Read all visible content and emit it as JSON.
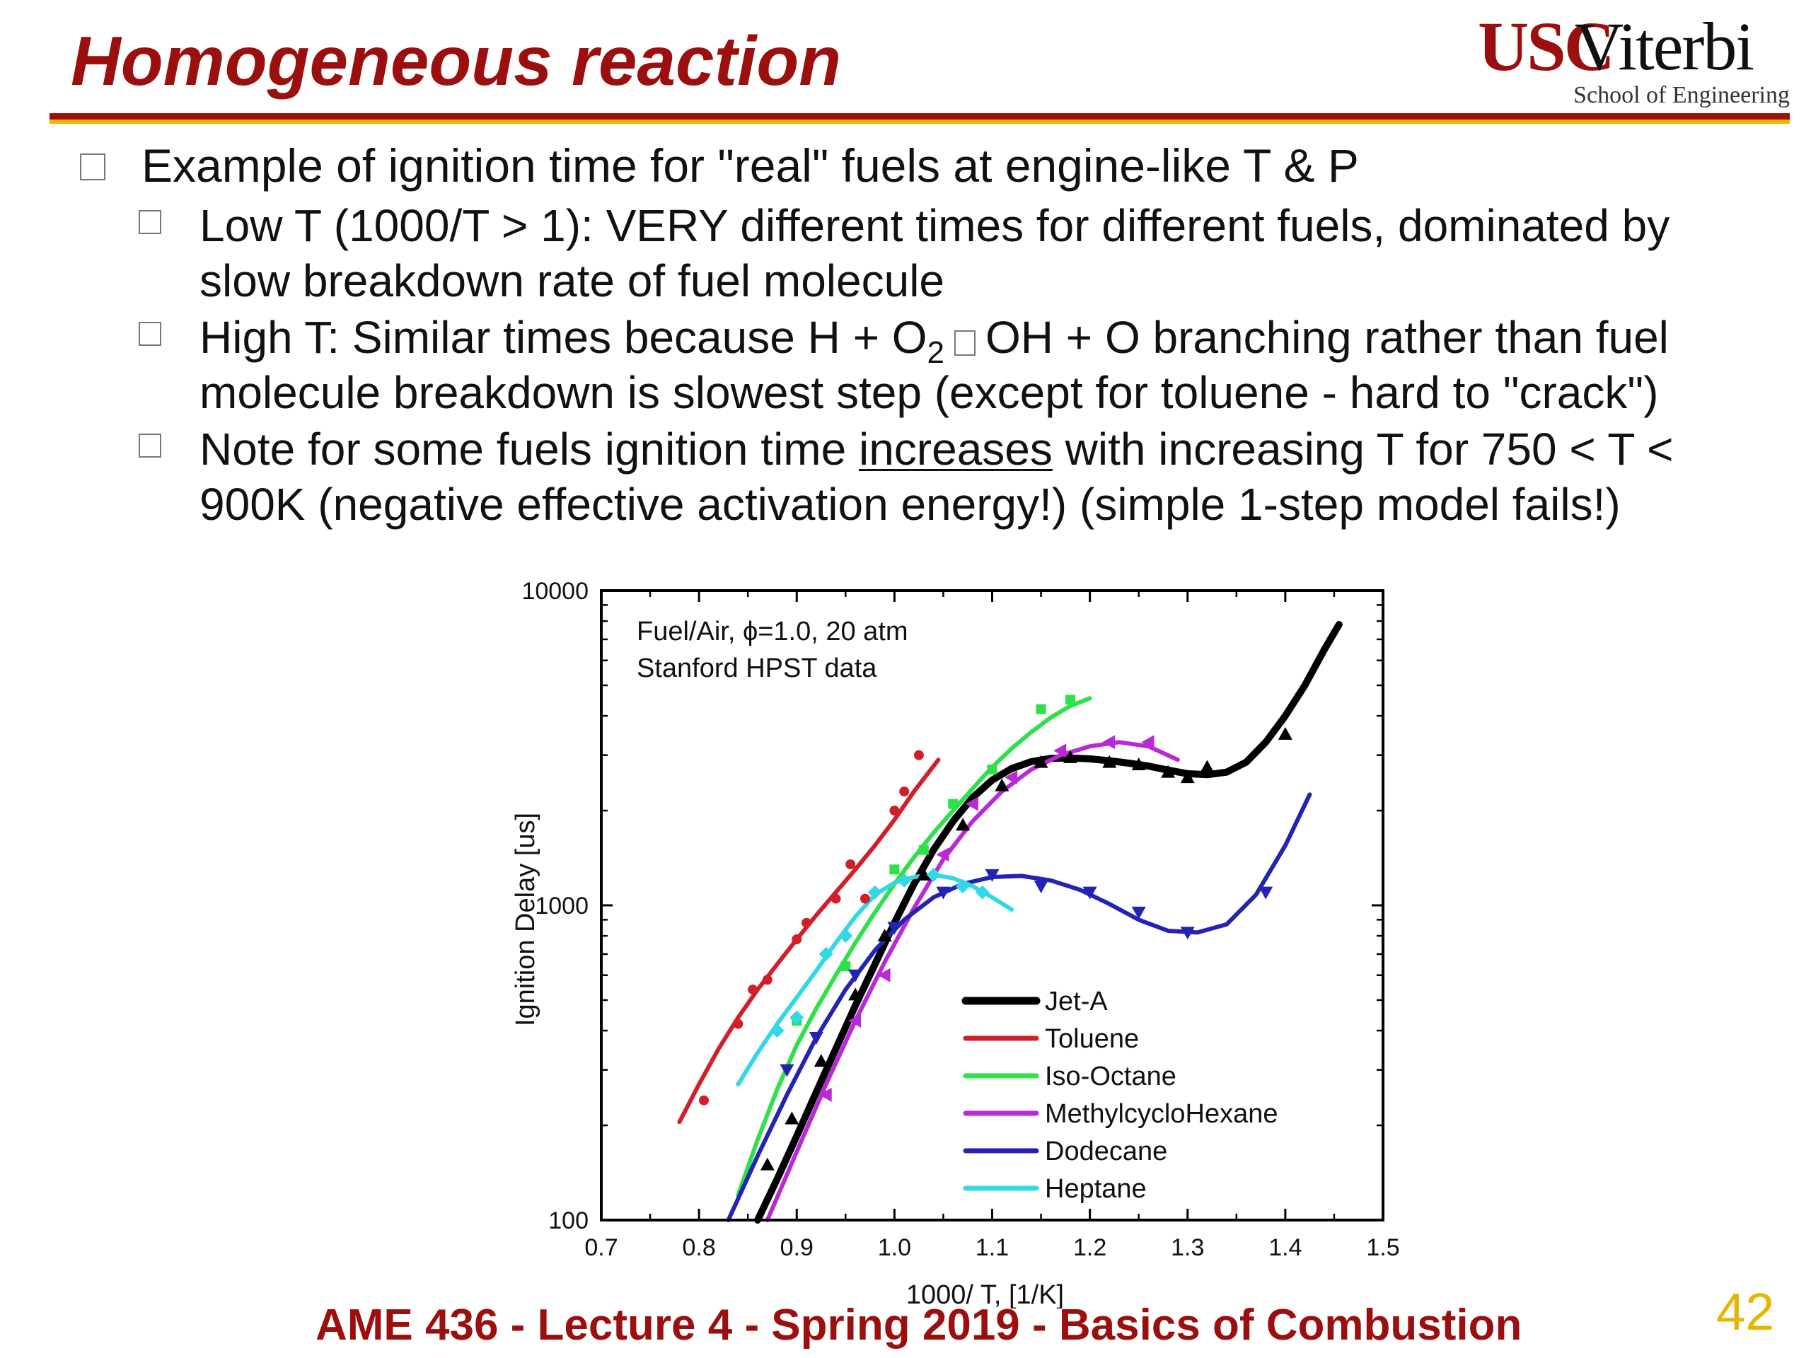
{
  "slide": {
    "title": "Homogeneous reaction",
    "logo": {
      "usc": "USC",
      "viterbi": "Viterbi",
      "school": "School of Engineering"
    },
    "bullet_main": "Example of ignition time for \"real\" fuels at engine-like T & P",
    "sub1_line1": "Low T (1000/T > 1):  VERY different times for different fuels, dominated by",
    "sub1_line2": "slow breakdown rate of fuel molecule",
    "sub2_a": "High T:  Similar times because H + O",
    "sub2_sub": "2",
    "sub2_b": "OH + O branching rather than fuel",
    "sub2_line2": "molecule breakdown is slowest step (except for toluene - hard to \"crack\")",
    "sub3_a": "Note for some fuels ignition time ",
    "sub3_u": "increases",
    "sub3_b": " with increasing T for 750 < T <",
    "sub3_line2": "900K (negative effective activation energy!) (simple 1-step model fails!)",
    "footer": "AME 436 - Lecture 4 - Spring 2019 - Basics of Combustion",
    "page_number": "42"
  },
  "chart_data": {
    "type": "line",
    "annotation_line1": "Fuel/Air, ϕ=1.0, 20 atm",
    "annotation_line2": "Stanford HPST data",
    "xlabel": "1000/ T, [1/K]",
    "ylabel": "Ignition Delay  [us]",
    "xlim": [
      0.7,
      1.5
    ],
    "ylim": [
      100,
      10000
    ],
    "yscale": "log",
    "x_ticks": [
      "0.7",
      "0.8",
      "0.9",
      "1.0",
      "1.1",
      "1.2",
      "1.3",
      "1.4",
      "1.5"
    ],
    "y_ticks": [
      "100",
      "1000",
      "10000"
    ],
    "legend_position": "lower-center",
    "series": [
      {
        "name": "Jet-A",
        "color": "#000000",
        "marker": "triangle-up",
        "x": [
          0.86,
          0.88,
          0.9,
          0.92,
          0.94,
          0.96,
          0.98,
          1.0,
          1.02,
          1.04,
          1.06,
          1.08,
          1.1,
          1.12,
          1.14,
          1.16,
          1.18,
          1.2,
          1.22,
          1.24,
          1.26,
          1.28,
          1.3,
          1.32,
          1.34,
          1.36,
          1.38,
          1.4,
          1.42,
          1.44,
          1.455
        ],
        "y": [
          100,
          135,
          185,
          255,
          350,
          480,
          650,
          880,
          1170,
          1500,
          1850,
          2200,
          2500,
          2720,
          2860,
          2930,
          2940,
          2920,
          2880,
          2830,
          2770,
          2690,
          2620,
          2600,
          2650,
          2850,
          3300,
          4000,
          5000,
          6500,
          7800
        ],
        "points_x": [
          0.87,
          0.895,
          0.925,
          0.96,
          0.99,
          1.03,
          1.07,
          1.11,
          1.15,
          1.18,
          1.22,
          1.25,
          1.28,
          1.3,
          1.32,
          1.4
        ],
        "points_y": [
          150,
          210,
          320,
          520,
          800,
          1250,
          1800,
          2400,
          2850,
          2950,
          2850,
          2800,
          2650,
          2550,
          2750,
          3500
        ]
      },
      {
        "name": "Toluene",
        "color": "#d11f2a",
        "marker": "circle",
        "x": [
          0.78,
          0.8,
          0.82,
          0.84,
          0.86,
          0.88,
          0.9,
          0.92,
          0.94,
          0.96,
          0.98,
          1.0,
          1.02,
          1.045
        ],
        "y": [
          205,
          270,
          350,
          440,
          540,
          650,
          780,
          930,
          1100,
          1300,
          1550,
          1870,
          2300,
          2900
        ],
        "points_x": [
          0.805,
          0.84,
          0.855,
          0.87,
          0.9,
          0.91,
          0.94,
          0.955,
          0.97,
          1.0,
          1.01,
          1.025
        ],
        "points_y": [
          240,
          420,
          540,
          580,
          780,
          880,
          1050,
          1350,
          1050,
          2000,
          2300,
          3000
        ]
      },
      {
        "name": "Iso-Octane",
        "color": "#2ee04a",
        "marker": "square",
        "x": [
          0.84,
          0.86,
          0.88,
          0.9,
          0.92,
          0.94,
          0.96,
          0.98,
          1.0,
          1.02,
          1.04,
          1.06,
          1.08,
          1.1,
          1.12,
          1.14,
          1.16,
          1.18,
          1.2
        ],
        "y": [
          120,
          180,
          260,
          360,
          470,
          600,
          760,
          950,
          1170,
          1420,
          1700,
          2000,
          2350,
          2750,
          3150,
          3550,
          3950,
          4300,
          4550
        ],
        "points_x": [
          0.9,
          0.95,
          1.0,
          1.03,
          1.06,
          1.1,
          1.15,
          1.18
        ],
        "points_y": [
          430,
          640,
          1300,
          1500,
          2100,
          2700,
          4200,
          4500
        ]
      },
      {
        "name": "MethylcycloHexane",
        "color": "#b82ad6",
        "marker": "triangle-left",
        "x": [
          0.87,
          0.9,
          0.93,
          0.96,
          0.99,
          1.02,
          1.05,
          1.08,
          1.11,
          1.14,
          1.17,
          1.2,
          1.23,
          1.26,
          1.29
        ],
        "y": [
          100,
          165,
          270,
          430,
          660,
          980,
          1400,
          1850,
          2300,
          2700,
          3000,
          3200,
          3300,
          3200,
          2900
        ],
        "points_x": [
          0.93,
          0.96,
          0.99,
          1.05,
          1.08,
          1.12,
          1.17,
          1.22,
          1.26
        ],
        "points_y": [
          250,
          430,
          600,
          1450,
          2100,
          2550,
          3100,
          3300,
          3300
        ]
      },
      {
        "name": "Dodecane",
        "color": "#2323b4",
        "marker": "triangle-down",
        "x": [
          0.83,
          0.86,
          0.89,
          0.92,
          0.95,
          0.98,
          1.01,
          1.04,
          1.07,
          1.1,
          1.13,
          1.16,
          1.19,
          1.22,
          1.25,
          1.28,
          1.31,
          1.34,
          1.37,
          1.4,
          1.425
        ],
        "y": [
          100,
          160,
          250,
          380,
          540,
          720,
          900,
          1060,
          1170,
          1230,
          1240,
          1200,
          1120,
          1010,
          900,
          830,
          820,
          870,
          1080,
          1550,
          2250
        ],
        "points_x": [
          0.89,
          0.92,
          0.96,
          1.0,
          1.05,
          1.1,
          1.15,
          1.2,
          1.25,
          1.3,
          1.38
        ],
        "points_y": [
          300,
          380,
          600,
          850,
          1100,
          1250,
          1150,
          1100,
          950,
          820,
          1100
        ]
      },
      {
        "name": "Heptane",
        "color": "#32d8e6",
        "marker": "diamond",
        "x": [
          0.84,
          0.86,
          0.88,
          0.9,
          0.92,
          0.94,
          0.96,
          0.98,
          1.0,
          1.02,
          1.04,
          1.06,
          1.08,
          1.1,
          1.12
        ],
        "y": [
          270,
          340,
          420,
          510,
          620,
          760,
          920,
          1080,
          1180,
          1230,
          1250,
          1220,
          1150,
          1060,
          970
        ],
        "points_x": [
          0.88,
          0.9,
          0.93,
          0.95,
          0.98,
          1.01,
          1.04,
          1.07,
          1.09
        ],
        "points_y": [
          400,
          440,
          700,
          800,
          1100,
          1200,
          1250,
          1150,
          1100
        ]
      }
    ]
  }
}
